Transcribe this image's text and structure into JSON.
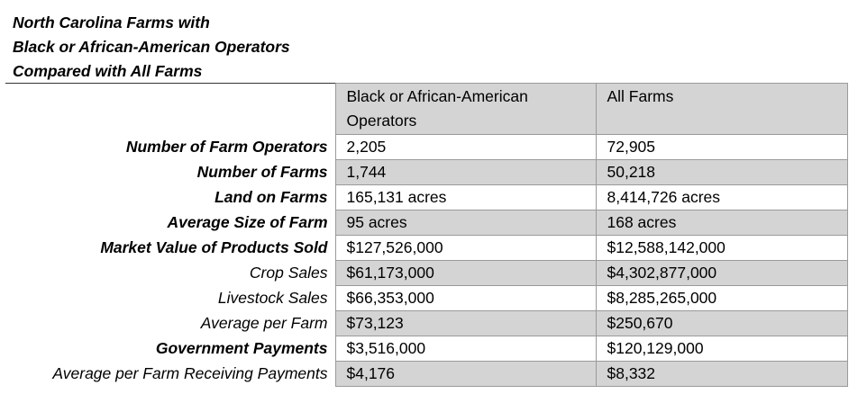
{
  "title": {
    "line1": "North Carolina Farms with",
    "line2": "Black or African-American Operators",
    "line3": "Compared with All Farms"
  },
  "table": {
    "headers": {
      "black": "Black or African-American Operators",
      "all": "All Farms"
    },
    "rows": [
      {
        "label": "Number of Farm Operators",
        "black": "2,205",
        "all": "72,905"
      },
      {
        "label": "Number of Farms",
        "black": "1,744",
        "all": "50,218"
      },
      {
        "label": "Land on Farms",
        "black": "165,131 acres",
        "all": "8,414,726 acres"
      },
      {
        "label": "Average Size of Farm",
        "black": "95 acres",
        "all": "168 acres"
      },
      {
        "label": "Market Value of Products Sold",
        "black": "$127,526,000",
        "all": "$12,588,142,000"
      },
      {
        "label": "Crop Sales",
        "black": "$61,173,000",
        "all": "$4,302,877,000"
      },
      {
        "label": "Livestock Sales",
        "black": "$66,353,000",
        "all": "$8,285,265,000"
      },
      {
        "label": "Average per Farm",
        "black": "$73,123",
        "all": "$250,670"
      },
      {
        "label": "Government Payments",
        "black": "$3,516,000",
        "all": "$120,129,000"
      },
      {
        "label": "Average per Farm Receiving Payments",
        "black": "$4,176",
        "all": "$8,332"
      }
    ]
  },
  "colors": {
    "shaded_cell": "#d4d4d4",
    "border": "#9a9a9a"
  }
}
